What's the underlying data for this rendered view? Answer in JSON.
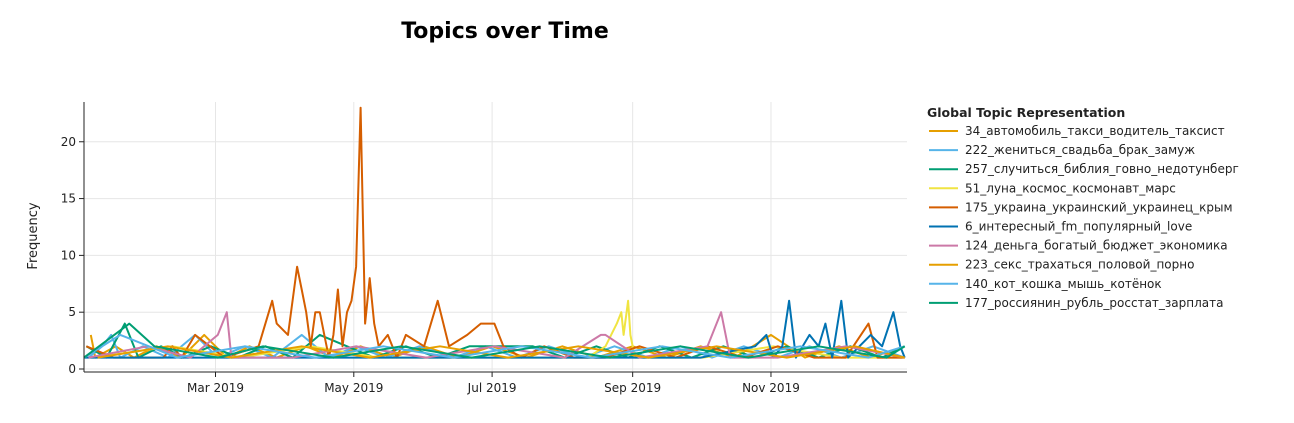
{
  "chart_data": {
    "type": "line",
    "title": "Topics over Time",
    "xlabel": "",
    "ylabel": "Frequency",
    "xlim": [
      "2019-01-02",
      "2019-12-31"
    ],
    "ylim": [
      0,
      23.5
    ],
    "y_ticks": [
      0,
      5,
      10,
      15,
      20
    ],
    "x_ticks": [
      {
        "date": "2019-03-01",
        "label": "Mar 2019"
      },
      {
        "date": "2019-05-01",
        "label": "May 2019"
      },
      {
        "date": "2019-07-01",
        "label": "Jul 2019"
      },
      {
        "date": "2019-09-01",
        "label": "Sep 2019"
      },
      {
        "date": "2019-11-01",
        "label": "Nov 2019"
      }
    ],
    "grid": true,
    "legend_title": "Global Topic Representation",
    "legend_position": "right",
    "series": [
      {
        "name": "34_автомобиль_такси_водитель_таксист",
        "color": "#E69F00",
        "points": [
          [
            "2019-01-05",
            3
          ],
          [
            "2019-01-07",
            1
          ],
          [
            "2019-01-16",
            2
          ],
          [
            "2019-01-24",
            1
          ],
          [
            "2019-02-03",
            2
          ],
          [
            "2019-02-14",
            1
          ],
          [
            "2019-02-24",
            3
          ],
          [
            "2019-03-06",
            1
          ],
          [
            "2019-03-16",
            2
          ],
          [
            "2019-03-28",
            1
          ],
          [
            "2019-04-10",
            2
          ],
          [
            "2019-04-22",
            1
          ],
          [
            "2019-05-04",
            2
          ],
          [
            "2019-05-18",
            1
          ],
          [
            "2019-06-01",
            2
          ],
          [
            "2019-06-16",
            1
          ],
          [
            "2019-07-01",
            2
          ],
          [
            "2019-07-16",
            1
          ],
          [
            "2019-08-01",
            2
          ],
          [
            "2019-08-16",
            1
          ],
          [
            "2019-09-01",
            2
          ],
          [
            "2019-09-16",
            1
          ],
          [
            "2019-10-01",
            2
          ],
          [
            "2019-10-16",
            1
          ],
          [
            "2019-11-01",
            3
          ],
          [
            "2019-11-16",
            1
          ],
          [
            "2019-12-01",
            2
          ],
          [
            "2019-12-15",
            1
          ],
          [
            "2019-12-30",
            2
          ]
        ]
      },
      {
        "name": "222_жениться_свадьба_брак_замуж",
        "color": "#56B4E9",
        "points": [
          [
            "2019-01-04",
            1
          ],
          [
            "2019-01-10",
            2
          ],
          [
            "2019-01-14",
            3
          ],
          [
            "2019-01-18",
            1
          ],
          [
            "2019-01-28",
            2
          ],
          [
            "2019-02-08",
            1
          ],
          [
            "2019-02-20",
            3
          ],
          [
            "2019-03-02",
            1
          ],
          [
            "2019-03-14",
            2
          ],
          [
            "2019-03-26",
            1
          ],
          [
            "2019-04-08",
            3
          ],
          [
            "2019-04-20",
            1
          ],
          [
            "2019-05-02",
            2
          ],
          [
            "2019-05-15",
            1
          ],
          [
            "2019-05-30",
            2
          ],
          [
            "2019-06-14",
            1
          ],
          [
            "2019-06-28",
            2
          ],
          [
            "2019-07-12",
            1
          ],
          [
            "2019-07-26",
            2
          ],
          [
            "2019-08-10",
            1
          ],
          [
            "2019-08-24",
            2
          ],
          [
            "2019-09-08",
            1
          ],
          [
            "2019-09-22",
            2
          ],
          [
            "2019-10-06",
            1
          ],
          [
            "2019-10-20",
            2
          ],
          [
            "2019-11-04",
            1
          ],
          [
            "2019-11-18",
            2
          ],
          [
            "2019-12-02",
            1
          ],
          [
            "2019-12-16",
            2
          ],
          [
            "2019-12-30",
            1
          ]
        ]
      },
      {
        "name": "257_случиться_библия_говно_недотунберг",
        "color": "#009E73",
        "points": [
          [
            "2019-01-03",
            2
          ],
          [
            "2019-01-12",
            1
          ],
          [
            "2019-01-20",
            4
          ],
          [
            "2019-01-26",
            1
          ],
          [
            "2019-02-05",
            2
          ],
          [
            "2019-02-15",
            1
          ],
          [
            "2019-02-27",
            2
          ],
          [
            "2019-03-11",
            1
          ],
          [
            "2019-03-23",
            2
          ],
          [
            "2019-04-04",
            1
          ],
          [
            "2019-04-16",
            3
          ],
          [
            "2019-04-28",
            2
          ],
          [
            "2019-05-10",
            1
          ],
          [
            "2019-05-24",
            2
          ],
          [
            "2019-06-07",
            1
          ],
          [
            "2019-06-21",
            2
          ],
          [
            "2019-07-05",
            2
          ],
          [
            "2019-07-19",
            2
          ],
          [
            "2019-08-02",
            1
          ],
          [
            "2019-08-16",
            2
          ],
          [
            "2019-08-30",
            1
          ],
          [
            "2019-09-13",
            2
          ],
          [
            "2019-09-27",
            1
          ],
          [
            "2019-10-11",
            2
          ],
          [
            "2019-10-25",
            1
          ],
          [
            "2019-11-08",
            2
          ],
          [
            "2019-11-22",
            1
          ],
          [
            "2019-12-06",
            2
          ],
          [
            "2019-12-20",
            1
          ],
          [
            "2019-12-30",
            2
          ]
        ]
      },
      {
        "name": "51_луна_космос_космонавт_марс",
        "color": "#F0E442",
        "points": [
          [
            "2019-01-06",
            1
          ],
          [
            "2019-02-10",
            2
          ],
          [
            "2019-03-12",
            1
          ],
          [
            "2019-04-12",
            2
          ],
          [
            "2019-05-12",
            1
          ],
          [
            "2019-06-12",
            1
          ],
          [
            "2019-07-12",
            1
          ],
          [
            "2019-08-12",
            1
          ],
          [
            "2019-08-20",
            2
          ],
          [
            "2019-08-25",
            4
          ],
          [
            "2019-08-27",
            5
          ],
          [
            "2019-08-28",
            3
          ],
          [
            "2019-08-30",
            6
          ],
          [
            "2019-08-31",
            3
          ],
          [
            "2019-09-02",
            1
          ],
          [
            "2019-10-02",
            1
          ],
          [
            "2019-11-02",
            2
          ],
          [
            "2019-12-02",
            1
          ],
          [
            "2019-12-30",
            1
          ]
        ]
      },
      {
        "name": "175_украина_украинский_украинец_крым",
        "color": "#D55E00",
        "points": [
          [
            "2019-01-03",
            2
          ],
          [
            "2019-01-15",
            1
          ],
          [
            "2019-02-06",
            1
          ],
          [
            "2019-02-10",
            2
          ],
          [
            "2019-02-14",
            1
          ],
          [
            "2019-02-20",
            3
          ],
          [
            "2019-03-05",
            1
          ],
          [
            "2019-03-20",
            2
          ],
          [
            "2019-03-26",
            6
          ],
          [
            "2019-03-28",
            4
          ],
          [
            "2019-04-02",
            3
          ],
          [
            "2019-04-06",
            9
          ],
          [
            "2019-04-08",
            7
          ],
          [
            "2019-04-10",
            5
          ],
          [
            "2019-04-12",
            2
          ],
          [
            "2019-04-14",
            5
          ],
          [
            "2019-04-16",
            5
          ],
          [
            "2019-04-18",
            3
          ],
          [
            "2019-04-20",
            1
          ],
          [
            "2019-04-22",
            3
          ],
          [
            "2019-04-24",
            7
          ],
          [
            "2019-04-26",
            2
          ],
          [
            "2019-04-28",
            5
          ],
          [
            "2019-04-30",
            6
          ],
          [
            "2019-05-02",
            9
          ],
          [
            "2019-05-04",
            23
          ],
          [
            "2019-05-06",
            4
          ],
          [
            "2019-05-08",
            8
          ],
          [
            "2019-05-10",
            4
          ],
          [
            "2019-05-12",
            2
          ],
          [
            "2019-05-16",
            3
          ],
          [
            "2019-05-20",
            1
          ],
          [
            "2019-05-24",
            3
          ],
          [
            "2019-06-01",
            2
          ],
          [
            "2019-06-07",
            6
          ],
          [
            "2019-06-12",
            2
          ],
          [
            "2019-06-20",
            3
          ],
          [
            "2019-06-26",
            4
          ],
          [
            "2019-07-02",
            4
          ],
          [
            "2019-07-06",
            2
          ],
          [
            "2019-07-14",
            1
          ],
          [
            "2019-07-24",
            2
          ],
          [
            "2019-08-06",
            1
          ],
          [
            "2019-08-20",
            1
          ],
          [
            "2019-09-04",
            2
          ],
          [
            "2019-09-20",
            1
          ],
          [
            "2019-10-04",
            2
          ],
          [
            "2019-10-20",
            1
          ],
          [
            "2019-11-04",
            2
          ],
          [
            "2019-11-20",
            1
          ],
          [
            "2019-12-04",
            1
          ],
          [
            "2019-12-14",
            4
          ],
          [
            "2019-12-18",
            1
          ],
          [
            "2019-12-30",
            1
          ]
        ]
      },
      {
        "name": "6_интересный_fm_популярный_love",
        "color": "#0072B2",
        "points": [
          [
            "2019-01-02",
            1
          ],
          [
            "2019-02-01",
            1
          ],
          [
            "2019-03-01",
            1
          ],
          [
            "2019-04-01",
            1
          ],
          [
            "2019-05-01",
            1
          ],
          [
            "2019-06-01",
            1
          ],
          [
            "2019-07-01",
            1
          ],
          [
            "2019-08-01",
            1
          ],
          [
            "2019-09-01",
            1
          ],
          [
            "2019-10-01",
            1
          ],
          [
            "2019-10-25",
            2
          ],
          [
            "2019-10-30",
            3
          ],
          [
            "2019-11-02",
            1
          ],
          [
            "2019-11-06",
            2
          ],
          [
            "2019-11-09",
            6
          ],
          [
            "2019-11-12",
            1
          ],
          [
            "2019-11-18",
            3
          ],
          [
            "2019-11-22",
            2
          ],
          [
            "2019-11-25",
            4
          ],
          [
            "2019-11-28",
            1
          ],
          [
            "2019-12-02",
            6
          ],
          [
            "2019-12-05",
            1
          ],
          [
            "2019-12-10",
            2
          ],
          [
            "2019-12-15",
            3
          ],
          [
            "2019-12-20",
            2
          ],
          [
            "2019-12-25",
            5
          ],
          [
            "2019-12-28",
            2
          ],
          [
            "2019-12-30",
            1
          ]
        ]
      },
      {
        "name": "124_деньга_богатый_бюджет_экономика",
        "color": "#CC79A7",
        "points": [
          [
            "2019-01-04",
            1
          ],
          [
            "2019-01-30",
            2
          ],
          [
            "2019-02-18",
            1
          ],
          [
            "2019-03-02",
            3
          ],
          [
            "2019-03-06",
            5
          ],
          [
            "2019-03-08",
            1
          ],
          [
            "2019-04-04",
            1
          ],
          [
            "2019-05-02",
            2
          ],
          [
            "2019-06-02",
            1
          ],
          [
            "2019-07-02",
            2
          ],
          [
            "2019-08-02",
            1
          ],
          [
            "2019-08-18",
            3
          ],
          [
            "2019-08-20",
            3
          ],
          [
            "2019-09-04",
            1
          ],
          [
            "2019-10-04",
            2
          ],
          [
            "2019-10-10",
            5
          ],
          [
            "2019-10-14",
            1
          ],
          [
            "2019-11-04",
            1
          ],
          [
            "2019-12-04",
            2
          ],
          [
            "2019-12-30",
            1
          ]
        ]
      },
      {
        "name": "223_секс_трахаться_половой_порно",
        "color": "#E69F00",
        "points": [
          [
            "2019-01-08",
            1
          ],
          [
            "2019-02-08",
            2
          ],
          [
            "2019-03-08",
            1
          ],
          [
            "2019-04-08",
            2
          ],
          [
            "2019-05-08",
            1
          ],
          [
            "2019-06-08",
            2
          ],
          [
            "2019-07-08",
            1
          ],
          [
            "2019-08-08",
            2
          ],
          [
            "2019-09-08",
            1
          ],
          [
            "2019-10-08",
            2
          ],
          [
            "2019-11-08",
            1
          ],
          [
            "2019-12-08",
            2
          ],
          [
            "2019-12-30",
            1
          ]
        ]
      },
      {
        "name": "140_кот_кошка_мышь_котёнок",
        "color": "#56B4E9",
        "points": [
          [
            "2019-01-02",
            1
          ],
          [
            "2019-01-18",
            3
          ],
          [
            "2019-02-12",
            1
          ],
          [
            "2019-03-14",
            2
          ],
          [
            "2019-04-14",
            1
          ],
          [
            "2019-05-14",
            2
          ],
          [
            "2019-06-14",
            1
          ],
          [
            "2019-07-14",
            2
          ],
          [
            "2019-08-14",
            1
          ],
          [
            "2019-09-14",
            2
          ],
          [
            "2019-10-14",
            1
          ],
          [
            "2019-11-14",
            2
          ],
          [
            "2019-12-14",
            1
          ],
          [
            "2019-12-30",
            2
          ]
        ]
      },
      {
        "name": "177_россиянин_рубль_росстат_зарплата",
        "color": "#009E73",
        "points": [
          [
            "2019-01-02",
            1
          ],
          [
            "2019-01-22",
            4
          ],
          [
            "2019-02-02",
            2
          ],
          [
            "2019-03-02",
            1
          ],
          [
            "2019-03-22",
            2
          ],
          [
            "2019-04-22",
            1
          ],
          [
            "2019-05-22",
            2
          ],
          [
            "2019-06-22",
            1
          ],
          [
            "2019-07-22",
            2
          ],
          [
            "2019-08-22",
            1
          ],
          [
            "2019-09-22",
            2
          ],
          [
            "2019-10-22",
            1
          ],
          [
            "2019-11-22",
            2
          ],
          [
            "2019-12-22",
            1
          ],
          [
            "2019-12-30",
            2
          ]
        ]
      }
    ]
  }
}
